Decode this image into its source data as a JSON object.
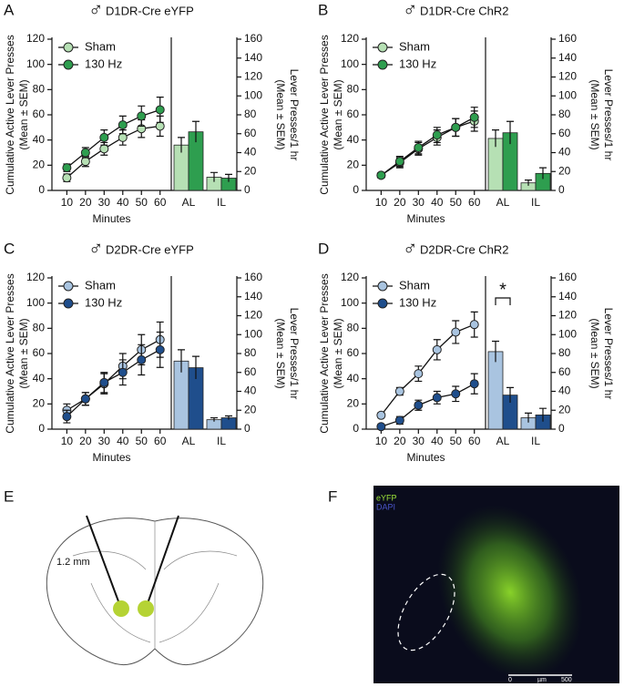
{
  "chart_data": [
    {
      "type": "line",
      "panel": "A",
      "symbol": "♂",
      "title": "D1DR-Cre eYFP",
      "x_label": "Minutes",
      "y_label": [
        "Cumulative Active Lever Presses",
        "(Mean ± SEM)"
      ],
      "x": [
        10,
        20,
        30,
        40,
        50,
        60
      ],
      "xlim": [
        2,
        66
      ],
      "ylim": [
        0,
        120
      ],
      "yticks": [
        0,
        20,
        40,
        60,
        80,
        100,
        120
      ],
      "series": [
        {
          "name": "Sham",
          "color": "#b6e0b4",
          "values": [
            10,
            23,
            33,
            42,
            49,
            51
          ],
          "errors": [
            3,
            4,
            5,
            6,
            7,
            8
          ]
        },
        {
          "name": "130 Hz",
          "color": "#2e9e4f",
          "values": [
            18,
            30,
            42,
            52,
            59,
            64
          ],
          "errors": [
            3,
            4,
            6,
            7,
            8,
            10
          ]
        }
      ]
    },
    {
      "type": "bar",
      "y_label": [
        "Lever Presses/1 hr",
        "(Mean ± SEM)"
      ],
      "categories": [
        "AL",
        "IL"
      ],
      "ylim": [
        0,
        160
      ],
      "yticks": [
        0,
        20,
        40,
        60,
        80,
        100,
        120,
        140,
        160
      ],
      "series": [
        {
          "color": "#b6e0b4",
          "values": [
            48,
            14
          ],
          "errors": [
            8,
            5
          ]
        },
        {
          "color": "#2e9e4f",
          "values": [
            62,
            13
          ],
          "errors": [
            11,
            4
          ]
        }
      ]
    },
    {
      "type": "line",
      "panel": "B",
      "symbol": "♂",
      "title": "D1DR-Cre ChR2",
      "x_label": "Minutes",
      "y_label": [
        "Cumulative Active Lever Presses",
        "(Mean ± SEM)"
      ],
      "x": [
        10,
        20,
        30,
        40,
        50,
        60
      ],
      "xlim": [
        2,
        66
      ],
      "ylim": [
        0,
        120
      ],
      "yticks": [
        0,
        20,
        40,
        60,
        80,
        100,
        120
      ],
      "series": [
        {
          "name": "Sham",
          "color": "#b6e0b4",
          "values": [
            12,
            22,
            33,
            42,
            50,
            55
          ],
          "errors": [
            2,
            4,
            5,
            6,
            7,
            8
          ]
        },
        {
          "name": "130 Hz",
          "color": "#2e9e4f",
          "values": [
            12,
            23,
            34,
            44,
            50,
            58
          ],
          "errors": [
            2,
            4,
            5,
            6,
            7,
            8
          ]
        }
      ]
    },
    {
      "type": "bar",
      "y_label": [
        "Lever Presses/1 hr",
        "(Mean ± SEM)"
      ],
      "categories": [
        "AL",
        "IL"
      ],
      "ylim": [
        0,
        160
      ],
      "yticks": [
        0,
        20,
        40,
        60,
        80,
        100,
        120,
        140,
        160
      ],
      "series": [
        {
          "color": "#b6e0b4",
          "values": [
            55,
            8
          ],
          "errors": [
            9,
            3
          ]
        },
        {
          "color": "#2e9e4f",
          "values": [
            61,
            18
          ],
          "errors": [
            12,
            6
          ]
        }
      ]
    },
    {
      "type": "line",
      "panel": "C",
      "symbol": "♂",
      "title": "D2DR-Cre eYFP",
      "x_label": "Minutes",
      "y_label": [
        "Cumulative Active Lever Presses",
        "(Mean ± SEM)"
      ],
      "x": [
        10,
        20,
        30,
        40,
        50,
        60
      ],
      "xlim": [
        2,
        66
      ],
      "ylim": [
        0,
        120
      ],
      "yticks": [
        0,
        20,
        40,
        60,
        80,
        100,
        120
      ],
      "series": [
        {
          "name": "Sham",
          "color": "#a9c4e0",
          "values": [
            15,
            24,
            36,
            50,
            63,
            71
          ],
          "errors": [
            5,
            5,
            8,
            10,
            12,
            14
          ]
        },
        {
          "name": "130 Hz",
          "color": "#1f4e8c",
          "values": [
            10,
            24,
            37,
            45,
            55,
            63
          ],
          "errors": [
            5,
            5,
            8,
            10,
            12,
            14
          ]
        }
      ]
    },
    {
      "type": "bar",
      "y_label": [
        "Lever Presses/1 hr",
        "(Mean ± SEM)"
      ],
      "categories": [
        "AL",
        "IL"
      ],
      "ylim": [
        0,
        160
      ],
      "yticks": [
        0,
        20,
        40,
        60,
        80,
        100,
        120,
        140,
        160
      ],
      "series": [
        {
          "color": "#a9c4e0",
          "values": [
            72,
            10
          ],
          "errors": [
            12,
            2
          ]
        },
        {
          "color": "#1f4e8c",
          "values": [
            65,
            12
          ],
          "errors": [
            12,
            2
          ]
        }
      ]
    },
    {
      "type": "line",
      "panel": "D",
      "symbol": "♂",
      "title": "D2DR-Cre ChR2",
      "x_label": "Minutes",
      "y_label": [
        "Cumulative Active Lever Presses",
        "(Mean ± SEM)"
      ],
      "x": [
        10,
        20,
        30,
        40,
        50,
        60
      ],
      "xlim": [
        2,
        66
      ],
      "ylim": [
        0,
        120
      ],
      "yticks": [
        0,
        20,
        40,
        60,
        80,
        100,
        120
      ],
      "series": [
        {
          "name": "Sham",
          "color": "#a9c4e0",
          "values": [
            11,
            30,
            44,
            63,
            77,
            83
          ],
          "errors": [
            2,
            3,
            6,
            8,
            9,
            10
          ]
        },
        {
          "name": "130 Hz",
          "color": "#1f4e8c",
          "values": [
            2,
            7,
            19,
            25,
            28,
            36
          ],
          "errors": [
            2,
            3,
            4,
            5,
            6,
            8
          ]
        }
      ]
    },
    {
      "type": "bar",
      "y_label": [
        "Lever Presses/1 hr",
        "(Mean ± SEM)"
      ],
      "categories": [
        "AL",
        "IL"
      ],
      "ylim": [
        0,
        160
      ],
      "yticks": [
        0,
        20,
        40,
        60,
        80,
        100,
        120,
        140,
        160
      ],
      "annotation": "*",
      "series": [
        {
          "color": "#a9c4e0",
          "values": [
            82,
            12
          ],
          "errors": [
            11,
            5
          ]
        },
        {
          "color": "#1f4e8c",
          "values": [
            36,
            15
          ],
          "errors": [
            8,
            7
          ]
        }
      ]
    }
  ],
  "panels": {
    "E": {
      "letter": "E",
      "label": "1.2 mm"
    },
    "F": {
      "letter": "F",
      "channels": [
        "eYFP",
        "DAPI"
      ],
      "scale": [
        "0",
        "µm",
        "500"
      ]
    }
  }
}
